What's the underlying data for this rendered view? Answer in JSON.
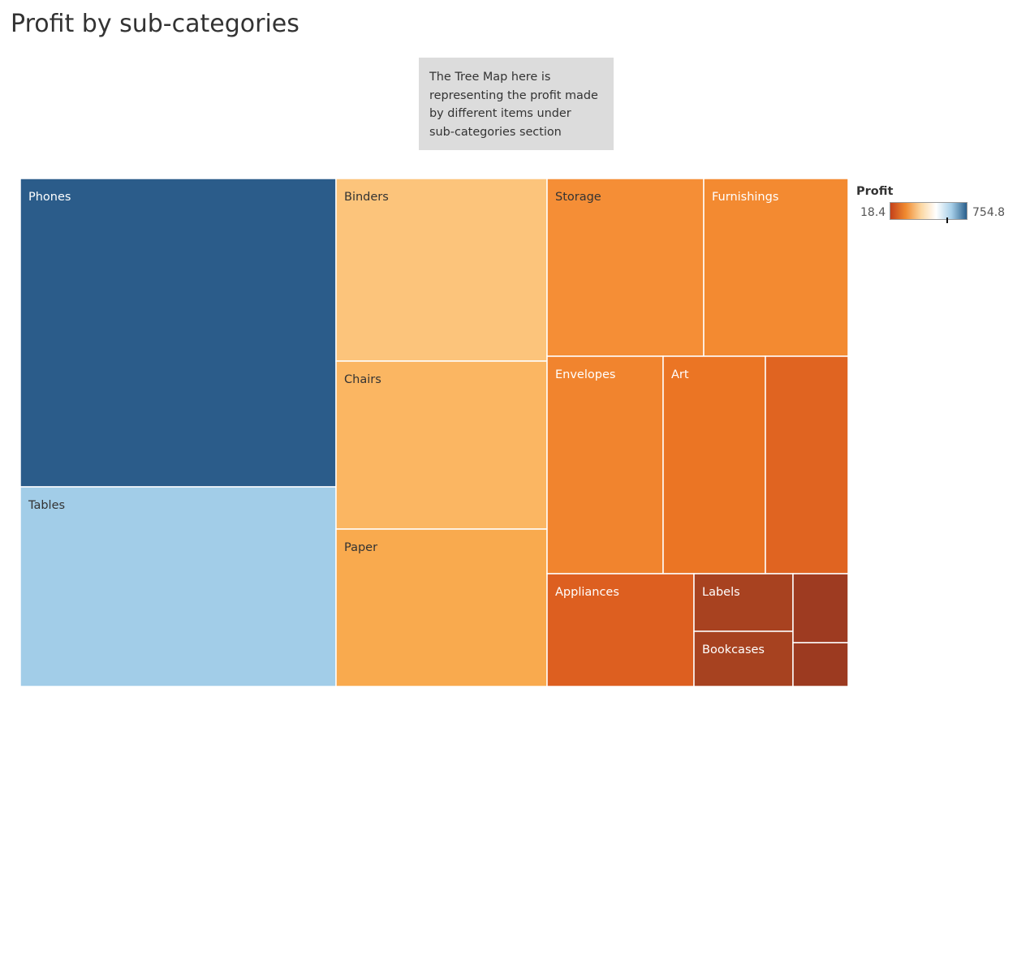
{
  "title": "Profit by sub-categories",
  "annotation": {
    "lines": [
      "The Tree Map here is",
      "representing the profit made",
      "by different items under",
      "sub-categories section"
    ]
  },
  "legend": {
    "title": "Profit",
    "min_label": "18.4",
    "max_label": "754.8",
    "gradient_colors": [
      "#c4411a",
      "#f08a30",
      "#fcd7a2",
      "#ffffff",
      "#a7cfe8",
      "#2a5f8c"
    ],
    "marker_value": 560
  },
  "chart_data": {
    "type": "treemap",
    "title": "Profit by sub-categories",
    "color_measure": "Profit",
    "color_range": [
      18.4,
      754.8
    ],
    "items": [
      {
        "label": "Phones",
        "color": "#2b5c8a"
      },
      {
        "label": "Tables",
        "color": "#a2cde8"
      },
      {
        "label": "Binders",
        "color": "#fcc47b"
      },
      {
        "label": "Chairs",
        "color": "#fbb662"
      },
      {
        "label": "Paper",
        "color": "#f9aa4e"
      },
      {
        "label": "Storage",
        "color": "#f58e36"
      },
      {
        "label": "Furnishings",
        "color": "#f38a31"
      },
      {
        "label": "Envelopes",
        "color": "#f1842e"
      },
      {
        "label": "Art",
        "color": "#eb7524"
      },
      {
        "label": "",
        "color": "#e06421"
      },
      {
        "label": "Appliances",
        "color": "#dd5f20"
      },
      {
        "label": "Labels",
        "color": "#a84220"
      },
      {
        "label": "Bookcases",
        "color": "#a74220"
      },
      {
        "label": "",
        "color": "#9e3b21"
      },
      {
        "label": "",
        "color": "#9c3a20"
      }
    ]
  }
}
